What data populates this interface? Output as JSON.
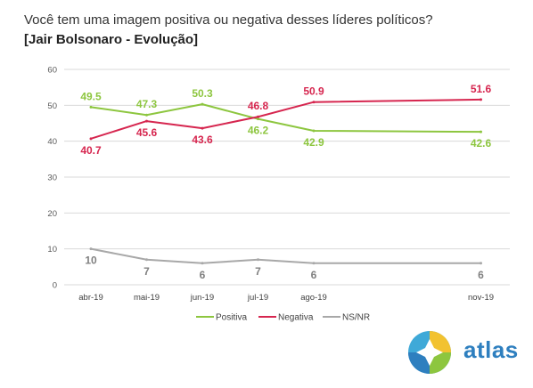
{
  "question": "Você tem uma imagem positiva ou negativa desses líderes políticos?",
  "subtitle": "[Jair Bolsonaro - Evolução]",
  "brand": {
    "name": "atlas",
    "color": "#2e7fbf"
  },
  "chart_data": {
    "type": "line",
    "categories": [
      "abr-19",
      "mai-19",
      "jun-19",
      "jul-19",
      "ago-19",
      "nov-19"
    ],
    "x_dates": [
      "2019-04",
      "2019-05",
      "2019-06",
      "2019-07",
      "2019-08",
      "2019-11"
    ],
    "ylim": [
      0,
      60
    ],
    "yticks": [
      0,
      10,
      20,
      30,
      40,
      50,
      60
    ],
    "grid": true,
    "legend_position": "bottom",
    "series": [
      {
        "name": "Positiva",
        "color": "#8dc63f",
        "values": [
          49.5,
          47.3,
          50.3,
          46.2,
          42.9,
          42.6
        ],
        "labels": [
          "49.5",
          "47.3",
          "50.3",
          "46.2",
          "42.9",
          "42.6"
        ]
      },
      {
        "name": "Negativa",
        "color": "#d6264f",
        "values": [
          40.7,
          45.6,
          43.6,
          46.8,
          50.9,
          51.6
        ],
        "labels": [
          "40.7",
          "45.6",
          "43.6",
          "46.8",
          "50.9",
          "51.6"
        ]
      },
      {
        "name": "NS/NR",
        "color": "#a8a8a8",
        "values": [
          10,
          7,
          6,
          7,
          6,
          6
        ],
        "labels": [
          "10",
          "7",
          "6",
          "7",
          "6",
          "6"
        ]
      }
    ]
  }
}
